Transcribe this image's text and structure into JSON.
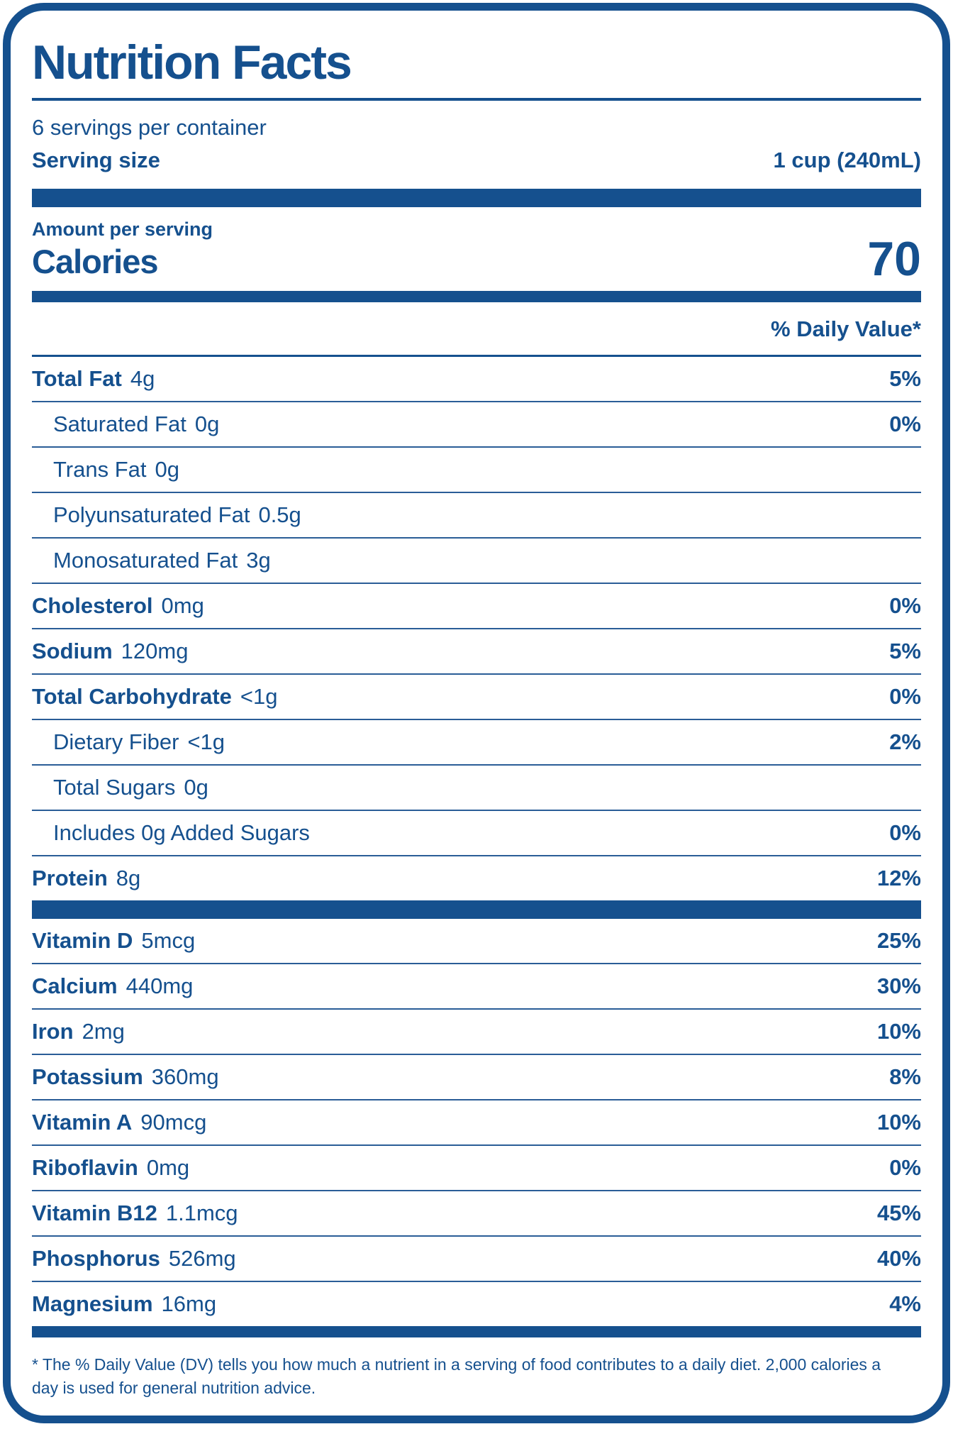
{
  "colors": {
    "brand": "#15508E",
    "line": "#2A5D97"
  },
  "header": {
    "title": "Nutrition Facts",
    "servings_per_container": "6 servings per container",
    "serving_size_label": "Serving size",
    "serving_size_value": "1 cup (240mL)",
    "amount_per_serving": "Amount per serving",
    "calories_label": "Calories",
    "calories_value": "70",
    "daily_value_header": "% Daily Value*"
  },
  "nutrients": [
    {
      "label": "Total Fat",
      "amount": "4g",
      "dv": "5%"
    },
    {
      "label": "Saturated Fat",
      "amount": "0g",
      "dv": "0%"
    },
    {
      "label": "Trans Fat",
      "amount": "0g",
      "dv": ""
    },
    {
      "label": "Polyunsaturated Fat",
      "amount": "0.5g",
      "dv": ""
    },
    {
      "label": "Monosaturated Fat",
      "amount": "3g",
      "dv": ""
    },
    {
      "label": "Cholesterol",
      "amount": "0mg",
      "dv": "0%"
    },
    {
      "label": "Sodium",
      "amount": "120mg",
      "dv": "5%"
    },
    {
      "label": "Total Carbohydrate",
      "amount": "<1g",
      "dv": "0%"
    },
    {
      "label": "Dietary Fiber",
      "amount": "<1g",
      "dv": "2%"
    },
    {
      "label": "Total Sugars",
      "amount": "0g",
      "dv": ""
    },
    {
      "label": "Includes 0g Added Sugars",
      "amount": "",
      "dv": "0%"
    },
    {
      "label": "Protein",
      "amount": "8g",
      "dv": "12%"
    }
  ],
  "vitamins": [
    {
      "label": "Vitamin D",
      "amount": "5mcg",
      "dv": "25%"
    },
    {
      "label": "Calcium",
      "amount": "440mg",
      "dv": "30%"
    },
    {
      "label": "Iron",
      "amount": "2mg",
      "dv": "10%"
    },
    {
      "label": "Potassium",
      "amount": "360mg",
      "dv": "8%"
    },
    {
      "label": "Vitamin A",
      "amount": "90mcg",
      "dv": "10%"
    },
    {
      "label": "Riboflavin",
      "amount": "0mg",
      "dv": "0%"
    },
    {
      "label": "Vitamin B12",
      "amount": "1.1mcg",
      "dv": "45%"
    },
    {
      "label": "Phosphorus",
      "amount": "526mg",
      "dv": "40%"
    },
    {
      "label": "Magnesium",
      "amount": "16mg",
      "dv": "4%"
    }
  ],
  "footnote": "* The % Daily Value (DV) tells you how much a nutrient in a serving of food contributes to a daily diet. 2,000 calories a day is used for general nutrition advice."
}
